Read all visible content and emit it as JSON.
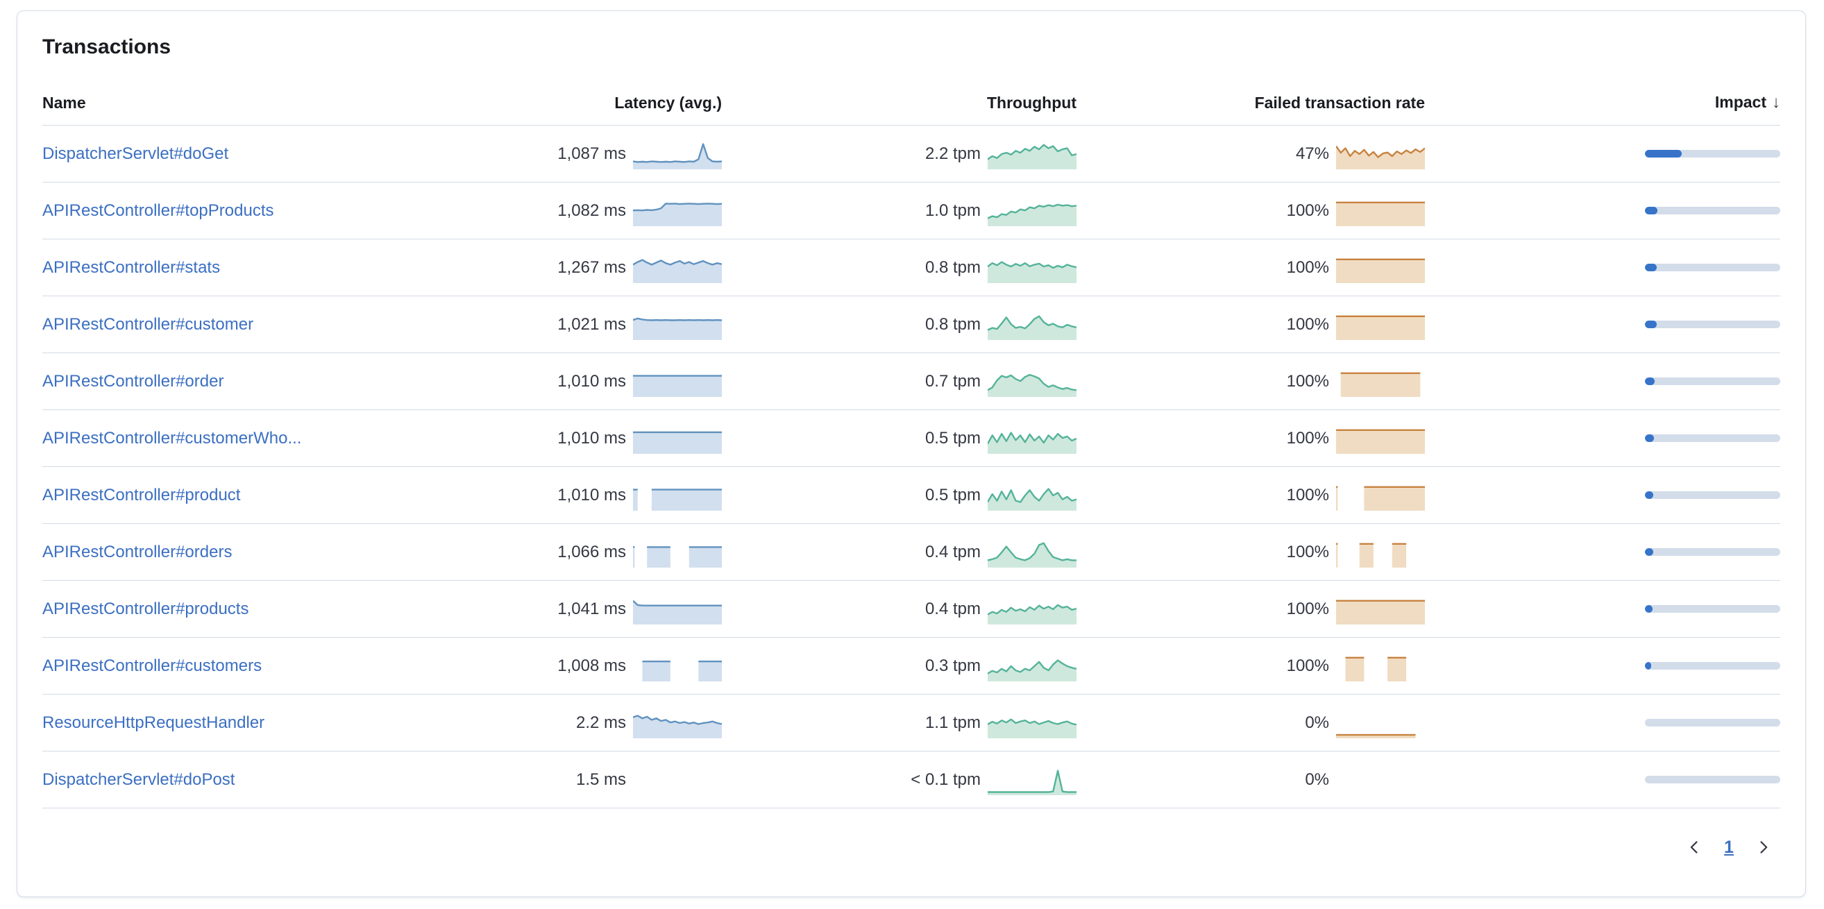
{
  "panel": {
    "title": "Transactions"
  },
  "table": {
    "headers": {
      "name": "Name",
      "latency": "Latency (avg.)",
      "throughput": "Throughput",
      "failed_rate": "Failed transaction rate",
      "impact": "Impact",
      "sort_icon": "↓"
    }
  },
  "colors": {
    "link": "#3b6fc2",
    "latency_stroke": "#6092C0",
    "latency_fill": "#d2dfee",
    "throughput_stroke": "#54B399",
    "throughput_fill": "#cfe8dd",
    "failed_stroke": "#c8823f",
    "failed_fill": "#f0dcc2",
    "impact_fill": "#3774c9",
    "impact_track": "#d3dce9"
  },
  "rows": [
    {
      "name": "DispatcherServlet#doGet",
      "latency": "1,087 ms",
      "latency_spark": [
        0.22,
        0.2,
        0.21,
        0.2,
        0.22,
        0.21,
        0.2,
        0.21,
        0.2,
        0.22,
        0.21,
        0.2,
        0.22,
        0.21,
        0.3,
        0.88,
        0.35,
        0.22,
        0.21,
        0.22
      ],
      "throughput": "2.2 tpm",
      "throughput_spark": [
        0.3,
        0.42,
        0.35,
        0.5,
        0.55,
        0.48,
        0.62,
        0.55,
        0.7,
        0.62,
        0.78,
        0.68,
        0.85,
        0.72,
        0.8,
        0.6,
        0.68,
        0.72,
        0.45,
        0.5
      ],
      "failed_rate": "47%",
      "failed_spark": [
        0.8,
        0.55,
        0.72,
        0.42,
        0.62,
        0.5,
        0.66,
        0.44,
        0.58,
        0.38,
        0.52,
        0.56,
        0.42,
        0.6,
        0.5,
        0.64,
        0.54,
        0.68,
        0.58,
        0.72
      ],
      "impact": 0.27
    },
    {
      "name": "APIRestController#topProducts",
      "latency": "1,082 ms",
      "latency_spark": [
        0.52,
        0.53,
        0.52,
        0.54,
        0.53,
        0.55,
        0.6,
        0.78,
        0.77,
        0.78,
        0.76,
        0.77,
        0.78,
        0.77,
        0.76,
        0.77,
        0.78,
        0.77,
        0.76,
        0.77
      ],
      "throughput": "1.0 tpm",
      "throughput_spark": [
        0.22,
        0.3,
        0.26,
        0.38,
        0.35,
        0.48,
        0.44,
        0.56,
        0.52,
        0.64,
        0.6,
        0.7,
        0.66,
        0.72,
        0.68,
        0.74,
        0.7,
        0.72,
        0.68,
        0.7
      ],
      "failed_rate": "100%",
      "failed_spark": [
        0.82,
        0.82,
        0.82,
        0.82,
        0.82,
        0.82,
        0.82,
        0.82,
        0.82,
        0.82,
        0.82,
        0.82,
        0.82,
        0.82,
        0.82,
        0.82,
        0.82,
        0.82,
        0.82,
        0.82
      ],
      "impact": 0.09
    },
    {
      "name": "APIRestController#stats",
      "latency": "1,267 ms",
      "latency_spark": [
        0.62,
        0.72,
        0.8,
        0.7,
        0.62,
        0.7,
        0.78,
        0.68,
        0.62,
        0.7,
        0.76,
        0.66,
        0.72,
        0.64,
        0.7,
        0.76,
        0.68,
        0.62,
        0.68,
        0.64
      ],
      "throughput": "0.8 tpm",
      "throughput_spark": [
        0.55,
        0.68,
        0.6,
        0.72,
        0.62,
        0.55,
        0.65,
        0.58,
        0.68,
        0.56,
        0.62,
        0.66,
        0.55,
        0.6,
        0.5,
        0.58,
        0.52,
        0.62,
        0.56,
        0.52
      ],
      "failed_rate": "100%",
      "failed_spark": [
        0.82,
        0.82,
        0.82,
        0.82,
        0.82,
        0.82,
        0.82,
        0.82,
        0.82,
        0.82,
        0.82,
        0.82,
        0.82,
        0.82,
        0.82,
        0.82,
        0.82,
        0.82,
        0.82,
        0.82
      ],
      "impact": 0.085
    },
    {
      "name": "APIRestController#customer",
      "latency": "1,021 ms",
      "latency_spark": [
        0.68,
        0.74,
        0.7,
        0.68,
        0.67,
        0.68,
        0.67,
        0.68,
        0.67,
        0.67,
        0.68,
        0.67,
        0.68,
        0.67,
        0.68,
        0.67,
        0.68,
        0.67,
        0.68,
        0.67
      ],
      "throughput": "0.8 tpm",
      "throughput_spark": [
        0.3,
        0.38,
        0.34,
        0.55,
        0.78,
        0.52,
        0.38,
        0.42,
        0.36,
        0.52,
        0.72,
        0.82,
        0.6,
        0.48,
        0.54,
        0.44,
        0.4,
        0.5,
        0.44,
        0.4
      ],
      "failed_rate": "100%",
      "failed_spark": [
        0.82,
        0.82,
        0.82,
        0.82,
        0.82,
        0.82,
        0.82,
        0.82,
        0.82,
        0.82,
        0.82,
        0.82,
        0.82,
        0.82,
        0.82,
        0.82,
        0.82,
        0.82,
        0.82,
        0.82
      ],
      "impact": 0.085
    },
    {
      "name": "APIRestController#order",
      "latency": "1,010 ms",
      "latency_spark": [
        0.72,
        0.72,
        0.72,
        0.72,
        0.72,
        0.72,
        0.72,
        0.72,
        0.72,
        0.72,
        0.72,
        0.72,
        0.72,
        0.72,
        0.72,
        0.72,
        0.72,
        0.72,
        0.72,
        0.72
      ],
      "throughput": "0.7 tpm",
      "throughput_spark": [
        0.18,
        0.28,
        0.55,
        0.72,
        0.66,
        0.74,
        0.6,
        0.52,
        0.68,
        0.76,
        0.7,
        0.62,
        0.42,
        0.3,
        0.36,
        0.28,
        0.22,
        0.26,
        0.2,
        0.18
      ],
      "failed_rate": "100%",
      "failed_spark": [
        null,
        0.82,
        0.82,
        0.82,
        0.82,
        0.82,
        0.82,
        0.82,
        0.82,
        0.82,
        0.82,
        0.82,
        0.82,
        0.82,
        0.82,
        0.82,
        0.82,
        0.82,
        0.82,
        null
      ],
      "impact": 0.07
    },
    {
      "name": "APIRestController#customerWho...",
      "latency": "1,010 ms",
      "latency_spark": [
        0.74,
        0.74,
        0.74,
        0.74,
        0.74,
        0.74,
        0.74,
        0.74,
        0.74,
        0.74,
        0.74,
        0.74,
        0.74,
        0.74,
        0.74,
        0.74,
        0.74,
        0.74,
        0.74,
        0.74
      ],
      "throughput": "0.5 tpm",
      "throughput_spark": [
        0.3,
        0.62,
        0.36,
        0.68,
        0.4,
        0.72,
        0.44,
        0.62,
        0.36,
        0.66,
        0.42,
        0.58,
        0.34,
        0.62,
        0.46,
        0.68,
        0.52,
        0.58,
        0.42,
        0.5
      ],
      "failed_rate": "100%",
      "failed_spark": [
        0.82,
        0.82,
        0.82,
        0.82,
        0.82,
        0.82,
        0.82,
        0.82,
        0.82,
        0.82,
        0.82,
        0.82,
        0.82,
        0.82,
        0.82,
        0.82,
        0.82,
        0.82,
        0.82,
        0.82
      ],
      "impact": 0.065
    },
    {
      "name": "APIRestController#product",
      "latency": "1,010 ms",
      "latency_spark": [
        0.72,
        0.72,
        null,
        null,
        0.72,
        0.72,
        0.72,
        0.72,
        0.72,
        0.72,
        0.72,
        0.72,
        0.72,
        0.72,
        0.72,
        0.72,
        0.72,
        0.72,
        0.72,
        0.72
      ],
      "throughput": "0.5 tpm",
      "throughput_spark": [
        0.25,
        0.55,
        0.3,
        0.65,
        0.35,
        0.7,
        0.3,
        0.25,
        0.5,
        0.7,
        0.45,
        0.3,
        0.55,
        0.75,
        0.5,
        0.6,
        0.35,
        0.45,
        0.3,
        0.35
      ],
      "failed_rate": "100%",
      "failed_spark": [
        0.82,
        null,
        null,
        null,
        null,
        null,
        0.82,
        0.82,
        0.82,
        0.82,
        0.82,
        0.82,
        0.82,
        0.82,
        0.82,
        0.82,
        0.82,
        0.82,
        0.82,
        0.82
      ],
      "impact": 0.06
    },
    {
      "name": "APIRestController#orders",
      "latency": "1,066 ms",
      "latency_spark": [
        0.7,
        null,
        null,
        0.7,
        0.7,
        0.7,
        0.7,
        0.7,
        0.7,
        null,
        null,
        null,
        0.7,
        0.7,
        0.7,
        0.7,
        0.7,
        0.7,
        0.7,
        0.7
      ],
      "throughput": "0.4 tpm",
      "throughput_spark": [
        0.2,
        0.24,
        0.3,
        0.5,
        0.72,
        0.5,
        0.3,
        0.24,
        0.2,
        0.28,
        0.45,
        0.78,
        0.85,
        0.55,
        0.32,
        0.26,
        0.2,
        0.24,
        0.2,
        0.2
      ],
      "failed_rate": "100%",
      "failed_spark": [
        0.82,
        null,
        null,
        null,
        null,
        0.82,
        0.82,
        0.82,
        0.82,
        null,
        null,
        null,
        0.82,
        0.82,
        0.82,
        0.82,
        null,
        null,
        null,
        null
      ],
      "impact": 0.06
    },
    {
      "name": "APIRestController#products",
      "latency": "1,041 ms",
      "latency_spark": [
        0.82,
        0.66,
        0.64,
        0.64,
        0.64,
        0.64,
        0.64,
        0.64,
        0.64,
        0.64,
        0.64,
        0.64,
        0.64,
        0.64,
        0.64,
        0.64,
        0.64,
        0.64,
        0.64,
        0.64
      ],
      "throughput": "0.4 tpm",
      "throughput_spark": [
        0.3,
        0.4,
        0.34,
        0.48,
        0.4,
        0.56,
        0.44,
        0.5,
        0.42,
        0.58,
        0.48,
        0.64,
        0.52,
        0.6,
        0.5,
        0.66,
        0.56,
        0.6,
        0.48,
        0.52
      ],
      "failed_rate": "100%",
      "failed_spark": [
        0.82,
        0.82,
        0.82,
        0.82,
        0.82,
        0.82,
        0.82,
        0.82,
        0.82,
        0.82,
        0.82,
        0.82,
        0.82,
        0.82,
        0.82,
        0.82,
        0.82,
        0.82,
        0.82,
        0.82
      ],
      "impact": 0.055
    },
    {
      "name": "APIRestController#customers",
      "latency": "1,008 ms",
      "latency_spark": [
        null,
        null,
        0.68,
        0.68,
        0.68,
        0.68,
        0.68,
        0.68,
        0.68,
        null,
        null,
        null,
        null,
        null,
        0.68,
        0.68,
        0.68,
        0.68,
        0.68,
        0.68
      ],
      "throughput": "0.3 tpm",
      "throughput_spark": [
        0.22,
        0.32,
        0.26,
        0.4,
        0.3,
        0.5,
        0.34,
        0.28,
        0.4,
        0.34,
        0.5,
        0.66,
        0.44,
        0.34,
        0.56,
        0.72,
        0.6,
        0.5,
        0.44,
        0.4
      ],
      "failed_rate": "100%",
      "failed_spark": [
        null,
        null,
        0.82,
        0.82,
        0.82,
        0.82,
        0.82,
        null,
        null,
        null,
        null,
        0.82,
        0.82,
        0.82,
        0.82,
        0.82,
        null,
        null,
        null,
        null
      ],
      "impact": 0.045
    },
    {
      "name": "ResourceHttpRequestHandler",
      "latency": "2.2 ms",
      "latency_spark": [
        0.72,
        0.78,
        0.68,
        0.74,
        0.62,
        0.68,
        0.58,
        0.62,
        0.52,
        0.56,
        0.5,
        0.54,
        0.48,
        0.52,
        0.46,
        0.5,
        0.52,
        0.56,
        0.5,
        0.46
      ],
      "throughput": "1.1 tpm",
      "throughput_spark": [
        0.45,
        0.55,
        0.48,
        0.6,
        0.52,
        0.64,
        0.5,
        0.56,
        0.6,
        0.5,
        0.56,
        0.46,
        0.52,
        0.58,
        0.5,
        0.46,
        0.52,
        0.56,
        0.48,
        0.44
      ],
      "failed_rate": "0%",
      "failed_spark": [
        0.05,
        0.05,
        0.05,
        0.05,
        0.05,
        0.05,
        0.05,
        0.05,
        0.05,
        0.05,
        0.05,
        0.05,
        0.05,
        0.05,
        0.05,
        0.05,
        0.05,
        0.05,
        null,
        null
      ],
      "impact": 0
    },
    {
      "name": "DispatcherServlet#doPost",
      "latency": "1.5 ms",
      "latency_spark": [],
      "throughput": "< 0.1 tpm",
      "throughput_spark": [
        0.04,
        0.04,
        0.04,
        0.04,
        0.04,
        0.04,
        0.04,
        0.04,
        0.04,
        0.04,
        0.04,
        0.04,
        0.04,
        0.04,
        0.06,
        0.85,
        0.06,
        0.04,
        0.04,
        0.04
      ],
      "failed_rate": "0%",
      "failed_spark": [],
      "impact": 0
    }
  ],
  "pagination": {
    "page": "1"
  }
}
